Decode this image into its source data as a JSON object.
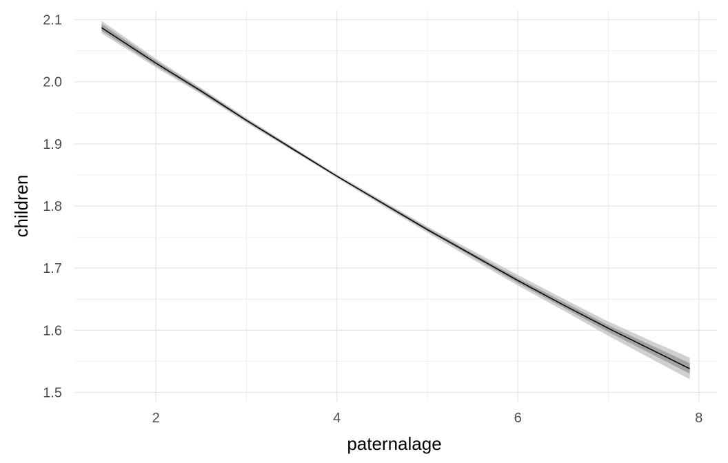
{
  "chart_data": {
    "type": "line",
    "title": "",
    "xlabel": "paternalage",
    "ylabel": "children",
    "xlim": [
      1.1,
      8.2
    ],
    "ylim": [
      1.485,
      2.115
    ],
    "x_ticks": [
      2,
      4,
      6,
      8
    ],
    "x_tick_labels": [
      "2",
      "4",
      "6",
      "8"
    ],
    "y_ticks": [
      1.5,
      1.6,
      1.7,
      1.8,
      1.9,
      2.0,
      2.1
    ],
    "y_tick_labels": [
      "1.5",
      "1.6",
      "1.7",
      "1.8",
      "1.9",
      "2.0",
      "2.1"
    ],
    "grid": true,
    "legend": "none",
    "series": [
      {
        "x": [
          1.4,
          2.0,
          2.5,
          3.0,
          3.5,
          4.0,
          4.5,
          5.0,
          5.5,
          6.0,
          6.5,
          7.0,
          7.5,
          7.9
        ],
        "y": [
          2.087,
          2.03,
          1.985,
          1.938,
          1.893,
          1.848,
          1.805,
          1.762,
          1.721,
          1.68,
          1.641,
          1.603,
          1.567,
          1.538
        ],
        "lower_outer": [
          2.078,
          2.023,
          1.98,
          1.934,
          1.89,
          1.845,
          1.801,
          1.757,
          1.714,
          1.672,
          1.632,
          1.591,
          1.552,
          1.521
        ],
        "upper_outer": [
          2.098,
          2.037,
          1.99,
          1.942,
          1.896,
          1.851,
          1.809,
          1.767,
          1.728,
          1.689,
          1.651,
          1.614,
          1.581,
          1.556
        ],
        "lower_inner": [
          2.082,
          2.026,
          1.982,
          1.936,
          1.891,
          1.847,
          1.803,
          1.76,
          1.718,
          1.676,
          1.637,
          1.597,
          1.56,
          1.53
        ],
        "upper_inner": [
          2.093,
          2.034,
          1.988,
          1.94,
          1.895,
          1.849,
          1.807,
          1.765,
          1.724,
          1.684,
          1.646,
          1.608,
          1.574,
          1.547
        ]
      }
    ],
    "colors": {
      "line": "#000000",
      "band_outer": "#c8c8c8",
      "band_inner": "#9a9a9a",
      "grid_major": "#e6e6e6",
      "grid_minor": "#f0f0f0"
    }
  }
}
